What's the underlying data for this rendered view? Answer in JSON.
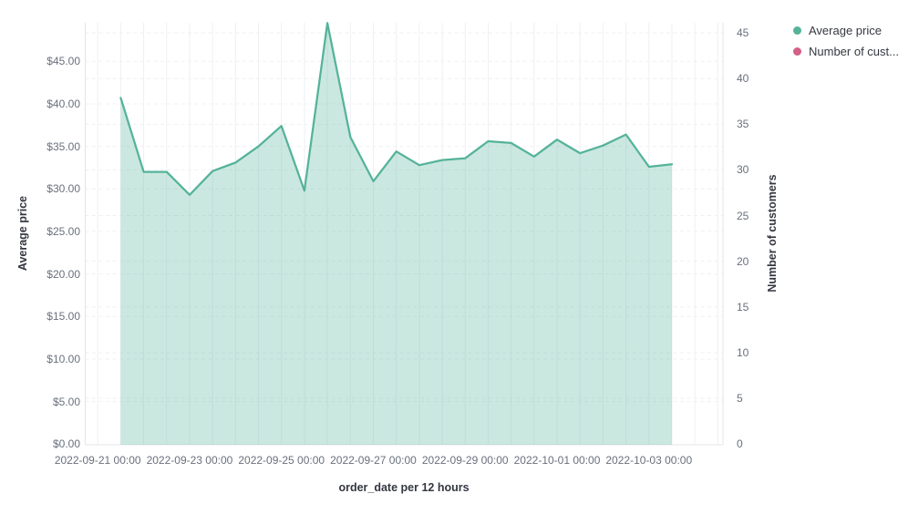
{
  "legend": {
    "position": "top-right",
    "items": [
      {
        "label": "Average price",
        "color": "#54b399",
        "icon": "series-dot-icon"
      },
      {
        "label": "Number of cust...",
        "color": "#d36086",
        "icon": "series-dot-icon"
      }
    ]
  },
  "axes": {
    "left": {
      "title": "Average price",
      "ticks": [
        "$0.00",
        "$5.00",
        "$10.00",
        "$15.00",
        "$20.00",
        "$25.00",
        "$30.00",
        "$35.00",
        "$40.00",
        "$45.00"
      ]
    },
    "right": {
      "title": "Number of customers",
      "ticks": [
        "0",
        "5",
        "10",
        "15",
        "20",
        "25",
        "30",
        "35",
        "40",
        "45"
      ]
    },
    "x": {
      "title": "order_date per 12 hours",
      "ticks": [
        "2022-09-21 00:00",
        "2022-09-23 00:00",
        "2022-09-25 00:00",
        "2022-09-27 00:00",
        "2022-09-29 00:00",
        "2022-10-01 00:00",
        "2022-10-03 00:00"
      ]
    }
  },
  "chart_data": {
    "type": "area",
    "title": "",
    "xlabel": "order_date per 12 hours",
    "ylabel_left": "Average price",
    "ylabel_right": "Number of customers",
    "x_interval": "12 hours",
    "left_ylim": [
      0,
      49.5
    ],
    "right_ylim": [
      0,
      45
    ],
    "grid": true,
    "legend_position": "top-right",
    "x": [
      "2022-09-21 12:00",
      "2022-09-22 00:00",
      "2022-09-22 12:00",
      "2022-09-23 00:00",
      "2022-09-23 12:00",
      "2022-09-24 00:00",
      "2022-09-24 12:00",
      "2022-09-25 00:00",
      "2022-09-25 12:00",
      "2022-09-26 00:00",
      "2022-09-26 12:00",
      "2022-09-27 00:00",
      "2022-09-27 12:00",
      "2022-09-28 00:00",
      "2022-09-28 12:00",
      "2022-09-29 00:00",
      "2022-09-29 12:00",
      "2022-09-30 00:00",
      "2022-09-30 12:00",
      "2022-10-01 00:00",
      "2022-10-01 12:00",
      "2022-10-02 00:00",
      "2022-10-02 12:00",
      "2022-10-03 00:00",
      "2022-10-03 12:00"
    ],
    "series": [
      {
        "name": "Average price",
        "axis": "left",
        "color": "#54b399",
        "style": "area",
        "values": [
          40.7,
          32.0,
          32.0,
          29.3,
          32.1,
          33.1,
          35.0,
          37.4,
          29.8,
          49.5,
          36.1,
          30.9,
          34.4,
          32.8,
          33.4,
          33.6,
          35.6,
          35.4,
          33.8,
          35.8,
          34.2,
          35.1,
          36.4,
          32.6,
          32.9
        ]
      },
      {
        "name": "Number of customers",
        "axis": "right",
        "color": "#d36086",
        "style": "hidden",
        "values": [],
        "note": "listed in legend but no visible data drawn in plot"
      }
    ]
  },
  "style": {
    "line_color": "#54b399",
    "area_fill": "rgba(84,179,153,0.3)",
    "gridline_color": "#eef0f3",
    "axisline_color": "#e2e5e9",
    "tick_text_color": "#69707d",
    "title_text_color": "#343741"
  }
}
